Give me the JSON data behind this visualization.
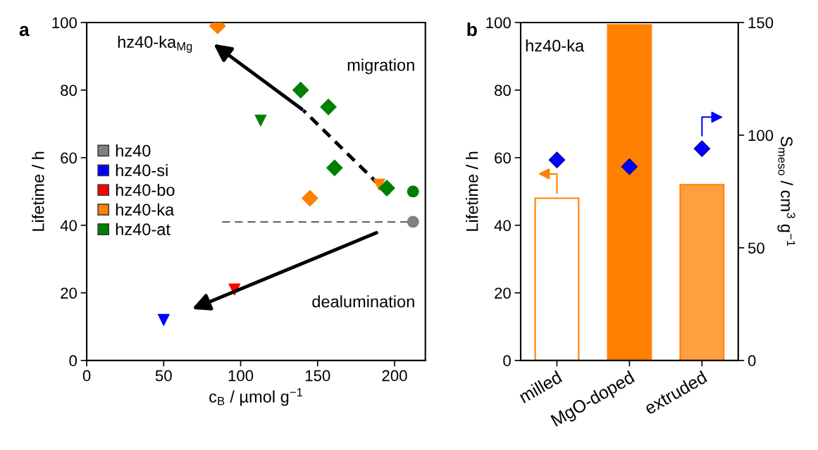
{
  "chart_data": [
    {
      "type": "scatter",
      "xlabel": "c$_{B}$ / µmol g$^{−1}$",
      "ylabel": "Lifetime / h",
      "xlim": [
        0,
        220
      ],
      "ylim": [
        0,
        100
      ],
      "xticks": [
        0,
        50,
        100,
        150,
        200
      ],
      "yticks": [
        0,
        20,
        40,
        60,
        80,
        100
      ],
      "grid": false,
      "legend": "left",
      "annotations": [
        "a",
        "migration",
        "dealumination",
        {
          "text": "hz40-ka$_{Mg}$",
          "x": 85,
          "y": 99
        }
      ],
      "ref_lines": [
        {
          "axis": "y",
          "value": 41,
          "line_style": "dashed",
          "color": "#000000"
        }
      ],
      "series": [
        {
          "name": "hz40",
          "color": "#808080",
          "marker": "circle",
          "x": [
            212
          ],
          "values": [
            41
          ]
        },
        {
          "name": "hz40-si",
          "color": "#0000ff",
          "marker": "triangle",
          "x": [
            50
          ],
          "values": [
            12
          ]
        },
        {
          "name": "hz40-bo",
          "color": "#ff0000",
          "marker": "triangle",
          "x": [
            96
          ],
          "values": [
            21
          ]
        },
        {
          "name": "hz40-ka",
          "color": "#ff8000",
          "marker": "diamond",
          "x": [
            85,
            145
          ],
          "values": [
            99,
            48
          ]
        },
        {
          "color": "#ff8000",
          "marker": "triangle",
          "x": [
            190
          ],
          "values": [
            52
          ]
        },
        {
          "name": "hz40-at",
          "color": "#008000",
          "marker": "diamond",
          "x": [
            139,
            157,
            161,
            195
          ],
          "values": [
            80,
            75,
            57,
            51
          ]
        },
        {
          "color": "#008000",
          "marker": "triangle",
          "x": [
            113
          ],
          "values": [
            71
          ]
        },
        {
          "color": "#008000",
          "marker": "circle",
          "x": [
            212
          ],
          "values": [
            50
          ]
        }
      ]
    },
    {
      "type": "bar",
      "categories": [
        "milled",
        "MgO-doped",
        "extruded"
      ],
      "ylabel": "Lifetime / h",
      "y2label": "S$_{meso}$ / cm$^{3}$ g$^{−1}$",
      "ylim": [
        0,
        100
      ],
      "yticks": [
        0,
        20,
        40,
        60,
        80,
        100
      ],
      "y2lim": [
        0,
        150
      ],
      "y2ticks": [
        0,
        50,
        100,
        150
      ],
      "grid": false,
      "annotations": [
        "b",
        "hz40-ka"
      ],
      "series": [
        {
          "type": "bar",
          "color": "#ff8000",
          "colors": [
            "#ffffff",
            "#ff8000",
            "#ffa040"
          ],
          "values": [
            48,
            99.3,
            52
          ]
        },
        {
          "type": "scatter",
          "axis": "y2",
          "marker": "diamond",
          "color": "#0000ff",
          "values": [
            89,
            86,
            94
          ]
        }
      ]
    }
  ]
}
